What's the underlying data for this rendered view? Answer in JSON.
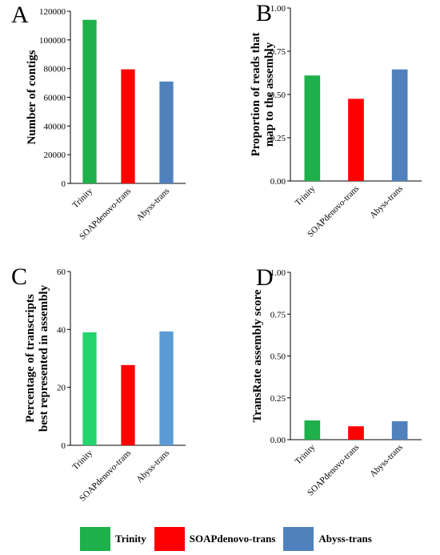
{
  "chart_data": [
    {
      "panel": "A",
      "type": "bar",
      "categories": [
        "Trinity",
        "SOAPdenovo-trans",
        "Abyss-trans"
      ],
      "values": [
        114000,
        79500,
        71000
      ],
      "colors": [
        "#1eb04a",
        "#ff0000",
        "#4f81bd"
      ],
      "ylabel": "Number of contigs",
      "ylim": [
        0,
        120000
      ],
      "ticks": [
        0,
        20000,
        40000,
        60000,
        80000,
        100000,
        120000
      ],
      "tick_labels": [
        "0",
        "20000",
        "40000",
        "60000",
        "80000",
        "100000",
        "120000"
      ],
      "grid": false
    },
    {
      "panel": "B",
      "type": "bar",
      "categories": [
        "Trinity",
        "SOAPdenovo-trans",
        "Abyss-trans"
      ],
      "values": [
        0.61,
        0.475,
        0.645
      ],
      "colors": [
        "#1eb04a",
        "#ff0000",
        "#4f81bd"
      ],
      "ylabel": [
        "Proportion of reads that",
        "map to the assembly"
      ],
      "ylim": [
        0,
        1
      ],
      "ticks": [
        0,
        0.25,
        0.5,
        0.75,
        1
      ],
      "tick_labels": [
        "0.00",
        "0.25",
        "0.50",
        "0.75",
        "1.00"
      ],
      "grid": false
    },
    {
      "panel": "C",
      "type": "bar",
      "categories": [
        "Trinity",
        "SOAPdenovo-trans",
        "Abyss-trans"
      ],
      "values": [
        39,
        27.7,
        39.3
      ],
      "colors": [
        "#24d46c",
        "#ff0000",
        "#5b9bd5"
      ],
      "ylabel": [
        "Percentage of transcripts",
        "best represented in assembly"
      ],
      "ylim": [
        0,
        60
      ],
      "ticks": [
        0,
        20,
        40,
        60
      ],
      "tick_labels": [
        "0",
        "20",
        "40",
        "60"
      ],
      "grid": false
    },
    {
      "panel": "D",
      "type": "bar",
      "categories": [
        "Trinity",
        "SOAPdenovo-trans",
        "Abyss-trans"
      ],
      "values": [
        0.115,
        0.08,
        0.11
      ],
      "colors": [
        "#1eb04a",
        "#ff0000",
        "#4f81bd"
      ],
      "ylabel": "TransRate assembly score",
      "ylim": [
        0,
        1
      ],
      "ticks": [
        0,
        0.25,
        0.5,
        0.75,
        1
      ],
      "tick_labels": [
        "0.00",
        "0.25",
        "0.50",
        "0.75",
        "1.00"
      ],
      "grid": false
    }
  ],
  "legend": {
    "position": "bottom",
    "items": [
      {
        "label": "Trinity",
        "color": "#1eb04a"
      },
      {
        "label": "SOAPdenovo-trans",
        "color": "#ff0000"
      },
      {
        "label": "Abyss-trans",
        "color": "#4f81bd"
      }
    ]
  }
}
